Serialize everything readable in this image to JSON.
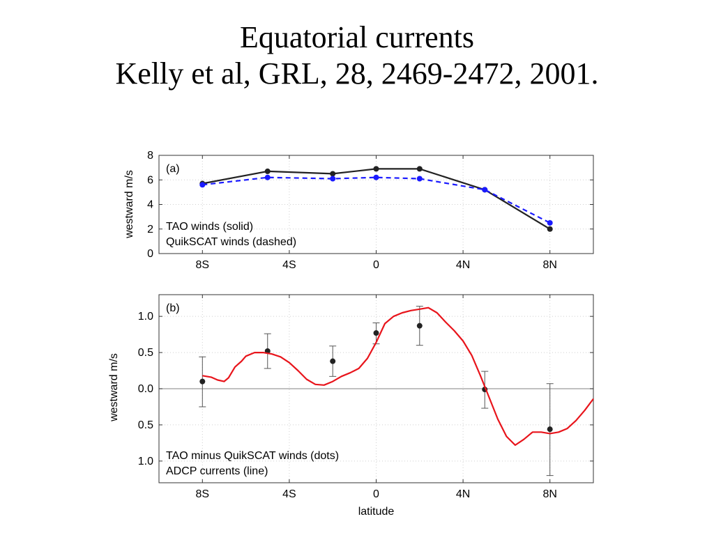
{
  "slide": {
    "title": "Equatorial currents",
    "subtitle": "Kelly et al, GRL, 28, 2469-2472, 2001."
  },
  "chart_data": [
    {
      "type": "line",
      "panel_label": "(a)",
      "ylabel": "westward m/s",
      "xlabel": "",
      "xlim": [
        -10,
        10
      ],
      "ylim": [
        0,
        8
      ],
      "xticks": [
        -8,
        -4,
        0,
        4,
        8
      ],
      "xticklabels": [
        "8S",
        "4S",
        "0",
        "4N",
        "8N"
      ],
      "yticks": [
        0,
        2,
        4,
        6,
        8
      ],
      "yticklabels": [
        "0",
        "2",
        "4",
        "6",
        "8"
      ],
      "grid": true,
      "legend_text": [
        "TAO winds (solid)",
        "QuikSCAT winds (dashed)"
      ],
      "legend_position": "bottom-left",
      "series": [
        {
          "name": "TAO winds",
          "style": "solid",
          "color": "#222222",
          "x": [
            -8,
            -5,
            -2,
            0,
            2,
            5,
            8
          ],
          "y": [
            5.7,
            6.7,
            6.5,
            6.9,
            6.9,
            5.2,
            2.0
          ]
        },
        {
          "name": "QuikSCAT winds",
          "style": "dashed",
          "color": "#1a1aff",
          "x": [
            -8,
            -5,
            -2,
            0,
            2,
            5,
            8
          ],
          "y": [
            5.6,
            6.2,
            6.1,
            6.2,
            6.1,
            5.2,
            2.5
          ]
        }
      ]
    },
    {
      "type": "line",
      "panel_label": "(b)",
      "ylabel": "westward m/s",
      "xlabel": "latitude",
      "xlim": [
        -10,
        10
      ],
      "ylim": [
        -1.3,
        1.3
      ],
      "xticks": [
        -8,
        -4,
        0,
        4,
        8
      ],
      "xticklabels": [
        "8S",
        "4S",
        "0",
        "4N",
        "8N"
      ],
      "yticks": [
        1.0,
        0.5,
        0.0,
        -0.5,
        -1.0
      ],
      "yticklabels": [
        "1.0",
        "0.5",
        "0.0",
        "0.5",
        "1.0"
      ],
      "grid": true,
      "zero_line": true,
      "legend_text": [
        "TAO minus QuikSCAT winds (dots)",
        "ADCP currents (line)"
      ],
      "legend_position": "bottom-left",
      "series": [
        {
          "name": "TAO minus QuikSCAT winds",
          "style": "dots",
          "color": "#222222",
          "x": [
            -8,
            -5,
            -2,
            0,
            2,
            5,
            8
          ],
          "y": [
            0.1,
            0.52,
            0.38,
            0.77,
            0.87,
            -0.01,
            -0.56
          ],
          "err_low": [
            -0.25,
            0.28,
            0.17,
            0.62,
            0.6,
            -0.27,
            -1.2
          ],
          "err_high": [
            0.44,
            0.76,
            0.59,
            0.91,
            1.14,
            0.24,
            0.07
          ]
        },
        {
          "name": "ADCP currents",
          "style": "line",
          "color": "#e8141b",
          "x": [
            -8,
            -7.6,
            -7.3,
            -7.0,
            -6.8,
            -6.5,
            -6.2,
            -6.0,
            -5.6,
            -5.2,
            -4.8,
            -4.4,
            -4.0,
            -3.6,
            -3.2,
            -2.8,
            -2.4,
            -2.0,
            -1.6,
            -1.2,
            -0.8,
            -0.4,
            0.0,
            0.4,
            0.8,
            1.2,
            1.6,
            2.0,
            2.4,
            2.8,
            3.2,
            3.6,
            4.0,
            4.4,
            4.8,
            5.2,
            5.6,
            6.0,
            6.4,
            6.8,
            7.2,
            7.6,
            8.0,
            8.4,
            8.8,
            9.2,
            9.6,
            10.0
          ],
          "y": [
            0.18,
            0.16,
            0.12,
            0.1,
            0.15,
            0.3,
            0.38,
            0.45,
            0.5,
            0.5,
            0.48,
            0.44,
            0.36,
            0.25,
            0.13,
            0.06,
            0.05,
            0.1,
            0.17,
            0.22,
            0.28,
            0.42,
            0.64,
            0.9,
            1.0,
            1.05,
            1.08,
            1.1,
            1.12,
            1.05,
            0.92,
            0.8,
            0.66,
            0.46,
            0.18,
            -0.12,
            -0.42,
            -0.66,
            -0.78,
            -0.7,
            -0.6,
            -0.6,
            -0.62,
            -0.6,
            -0.55,
            -0.44,
            -0.3,
            -0.14
          ]
        }
      ]
    }
  ]
}
